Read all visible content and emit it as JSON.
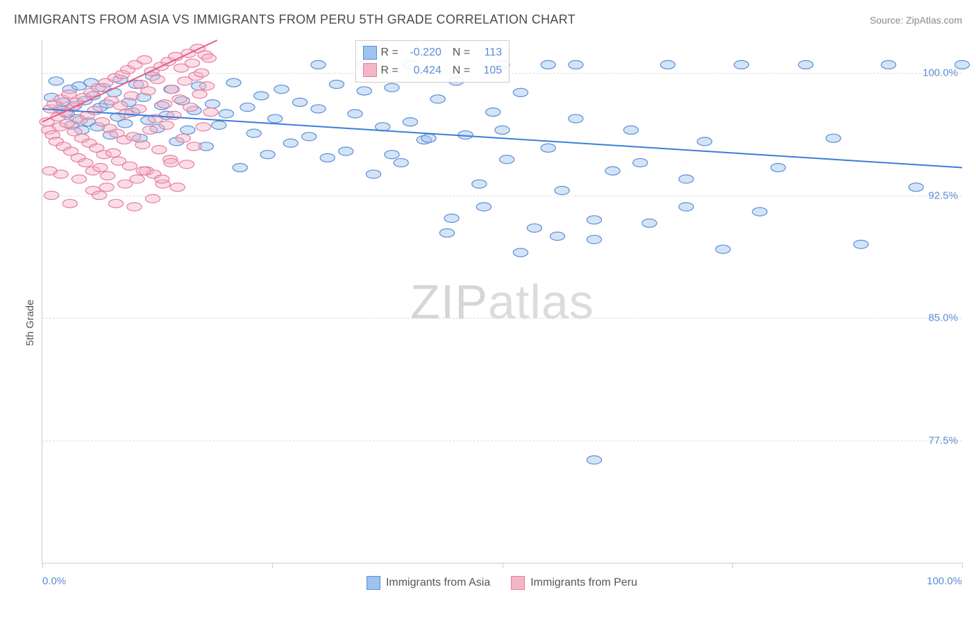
{
  "title": "IMMIGRANTS FROM ASIA VS IMMIGRANTS FROM PERU 5TH GRADE CORRELATION CHART",
  "source_label": "Source: ZipAtlas.com",
  "ylabel": "5th Grade",
  "watermark_a": "ZIP",
  "watermark_b": "atlas",
  "chart": {
    "type": "scatter",
    "xlim": [
      0,
      100
    ],
    "ylim": [
      70,
      102
    ],
    "xtick_positions": [
      0,
      25,
      50,
      75,
      100
    ],
    "xtick_labels_shown": {
      "0": "0.0%",
      "100": "100.0%"
    },
    "ytick_positions": [
      77.5,
      85.0,
      92.5,
      100.0
    ],
    "ytick_labels": [
      "77.5%",
      "85.0%",
      "92.5%",
      "100.0%"
    ],
    "grid_color": "#dddddd",
    "axis_color": "#cccccc",
    "background_color": "#ffffff",
    "tick_label_color": "#5b8dd6",
    "marker_radius": 8,
    "marker_opacity": 0.45,
    "line_width": 2,
    "series": [
      {
        "name": "Immigrants from Asia",
        "color_fill": "#9ec3ee",
        "color_stroke": "#5b8dd6",
        "line_color": "#3b7dd8",
        "R": "-0.220",
        "N": "113",
        "trend": {
          "x1": 0,
          "y1": 97.8,
          "x2": 100,
          "y2": 94.2
        },
        "points": [
          [
            1,
            98.5
          ],
          [
            1.5,
            99.5
          ],
          [
            2,
            97.8
          ],
          [
            2.3,
            98.2
          ],
          [
            2.7,
            97.5
          ],
          [
            3,
            99.0
          ],
          [
            3.2,
            96.8
          ],
          [
            3.5,
            98.0
          ],
          [
            3.8,
            97.2
          ],
          [
            4,
            99.2
          ],
          [
            4.3,
            96.5
          ],
          [
            4.6,
            98.3
          ],
          [
            5,
            97.0
          ],
          [
            5.3,
            99.4
          ],
          [
            5.5,
            98.6
          ],
          [
            6,
            96.7
          ],
          [
            6.3,
            97.9
          ],
          [
            6.6,
            99.1
          ],
          [
            7,
            98.1
          ],
          [
            7.4,
            96.2
          ],
          [
            7.8,
            98.8
          ],
          [
            8.2,
            97.3
          ],
          [
            8.5,
            99.6
          ],
          [
            9,
            96.9
          ],
          [
            9.4,
            98.2
          ],
          [
            9.8,
            97.6
          ],
          [
            10.2,
            99.3
          ],
          [
            10.6,
            96.0
          ],
          [
            11,
            98.5
          ],
          [
            11.5,
            97.1
          ],
          [
            12,
            99.8
          ],
          [
            12.5,
            96.6
          ],
          [
            13,
            98.0
          ],
          [
            13.5,
            97.4
          ],
          [
            14,
            99.0
          ],
          [
            14.6,
            95.8
          ],
          [
            15.2,
            98.3
          ],
          [
            15.8,
            96.5
          ],
          [
            16.5,
            97.7
          ],
          [
            17,
            99.2
          ],
          [
            17.8,
            95.5
          ],
          [
            18.5,
            98.1
          ],
          [
            19.2,
            96.8
          ],
          [
            20,
            97.5
          ],
          [
            20.8,
            99.4
          ],
          [
            21.5,
            94.2
          ],
          [
            22.3,
            97.9
          ],
          [
            23,
            96.3
          ],
          [
            23.8,
            98.6
          ],
          [
            24.5,
            95.0
          ],
          [
            25.3,
            97.2
          ],
          [
            26,
            99.0
          ],
          [
            27,
            95.7
          ],
          [
            28,
            98.2
          ],
          [
            29,
            96.1
          ],
          [
            30,
            97.8
          ],
          [
            31,
            94.8
          ],
          [
            32,
            99.3
          ],
          [
            33,
            95.2
          ],
          [
            34,
            97.5
          ],
          [
            35,
            98.9
          ],
          [
            36,
            93.8
          ],
          [
            37,
            96.7
          ],
          [
            38,
            99.1
          ],
          [
            39,
            94.5
          ],
          [
            40,
            97.0
          ],
          [
            41.5,
            95.9
          ],
          [
            43,
            98.4
          ],
          [
            44.5,
            91.1
          ],
          [
            46,
            96.2
          ],
          [
            47.5,
            93.2
          ],
          [
            49,
            97.6
          ],
          [
            50.5,
            94.7
          ],
          [
            52,
            98.8
          ],
          [
            53.5,
            90.5
          ],
          [
            55,
            95.4
          ],
          [
            56.5,
            92.8
          ],
          [
            58,
            97.2
          ],
          [
            60,
            89.8
          ],
          [
            62,
            94.0
          ],
          [
            64,
            96.5
          ],
          [
            66,
            90.8
          ],
          [
            68,
            100.5
          ],
          [
            70,
            93.5
          ],
          [
            72,
            95.8
          ],
          [
            74,
            89.2
          ],
          [
            76,
            100.5
          ],
          [
            78,
            91.5
          ],
          [
            80,
            94.2
          ],
          [
            83,
            100.5
          ],
          [
            86,
            96.0
          ],
          [
            89,
            89.5
          ],
          [
            92,
            100.5
          ],
          [
            95,
            93.0
          ],
          [
            100,
            100.5
          ],
          [
            44,
            90.2
          ],
          [
            48,
            91.8
          ],
          [
            52,
            89.0
          ],
          [
            56,
            90.0
          ],
          [
            60,
            76.3
          ],
          [
            35,
            100.5
          ],
          [
            40,
            100.5
          ],
          [
            45,
            99.5
          ],
          [
            50,
            96.5
          ],
          [
            55,
            100.5
          ],
          [
            60,
            91.0
          ],
          [
            65,
            94.5
          ],
          [
            70,
            91.8
          ],
          [
            50,
            100.5
          ],
          [
            58,
            100.5
          ],
          [
            42,
            96.0
          ],
          [
            38,
            95.0
          ],
          [
            30,
            100.5
          ]
        ]
      },
      {
        "name": "Immigrants from Peru",
        "color_fill": "#f4b6c6",
        "color_stroke": "#e87ba0",
        "line_color": "#e85a88",
        "R": "0.424",
        "N": "105",
        "trend": {
          "x1": 0,
          "y1": 97.0,
          "x2": 19,
          "y2": 102.0
        },
        "points": [
          [
            0.5,
            97.0
          ],
          [
            0.7,
            96.5
          ],
          [
            0.9,
            97.8
          ],
          [
            1.1,
            96.2
          ],
          [
            1.3,
            98.1
          ],
          [
            1.5,
            95.8
          ],
          [
            1.7,
            97.3
          ],
          [
            1.9,
            96.7
          ],
          [
            2.1,
            98.4
          ],
          [
            2.3,
            95.5
          ],
          [
            2.5,
            97.6
          ],
          [
            2.7,
            96.9
          ],
          [
            2.9,
            98.7
          ],
          [
            3.1,
            95.2
          ],
          [
            3.3,
            97.9
          ],
          [
            3.5,
            96.4
          ],
          [
            3.7,
            98.2
          ],
          [
            3.9,
            94.8
          ],
          [
            4.1,
            97.1
          ],
          [
            4.3,
            96.0
          ],
          [
            4.5,
            98.5
          ],
          [
            4.7,
            94.5
          ],
          [
            4.9,
            97.4
          ],
          [
            5.1,
            95.7
          ],
          [
            5.3,
            98.8
          ],
          [
            5.5,
            94.0
          ],
          [
            5.7,
            97.7
          ],
          [
            5.9,
            95.4
          ],
          [
            6.1,
            99.1
          ],
          [
            6.3,
            94.2
          ],
          [
            6.5,
            97.0
          ],
          [
            6.7,
            95.0
          ],
          [
            6.9,
            99.4
          ],
          [
            7.1,
            93.7
          ],
          [
            7.3,
            96.6
          ],
          [
            7.5,
            98.3
          ],
          [
            7.7,
            95.1
          ],
          [
            7.9,
            99.7
          ],
          [
            8.1,
            96.3
          ],
          [
            8.3,
            94.6
          ],
          [
            8.5,
            98.0
          ],
          [
            8.7,
            99.9
          ],
          [
            8.9,
            95.9
          ],
          [
            9.1,
            97.5
          ],
          [
            9.3,
            100.2
          ],
          [
            9.5,
            94.3
          ],
          [
            9.7,
            98.6
          ],
          [
            9.9,
            96.1
          ],
          [
            10.1,
            100.5
          ],
          [
            10.3,
            93.5
          ],
          [
            10.5,
            97.8
          ],
          [
            10.7,
            99.3
          ],
          [
            10.9,
            95.6
          ],
          [
            11.1,
            100.8
          ],
          [
            11.3,
            94.0
          ],
          [
            11.5,
            98.9
          ],
          [
            11.7,
            96.5
          ],
          [
            11.9,
            100.1
          ],
          [
            12.1,
            93.8
          ],
          [
            12.3,
            97.2
          ],
          [
            12.5,
            99.6
          ],
          [
            12.7,
            95.3
          ],
          [
            12.9,
            100.4
          ],
          [
            13.1,
            93.2
          ],
          [
            13.3,
            98.1
          ],
          [
            13.5,
            96.8
          ],
          [
            13.7,
            100.7
          ],
          [
            13.9,
            94.7
          ],
          [
            14.1,
            99.0
          ],
          [
            14.3,
            97.4
          ],
          [
            14.5,
            101.0
          ],
          [
            14.7,
            93.0
          ],
          [
            14.9,
            98.4
          ],
          [
            15.1,
            100.3
          ],
          [
            15.3,
            96.0
          ],
          [
            15.5,
            99.5
          ],
          [
            15.7,
            94.4
          ],
          [
            15.9,
            101.2
          ],
          [
            16.1,
            97.9
          ],
          [
            16.3,
            100.6
          ],
          [
            16.5,
            95.5
          ],
          [
            16.7,
            99.8
          ],
          [
            16.9,
            101.5
          ],
          [
            17.1,
            98.7
          ],
          [
            17.3,
            100.0
          ],
          [
            17.5,
            96.7
          ],
          [
            17.7,
            101.1
          ],
          [
            17.9,
            99.2
          ],
          [
            18.1,
            100.9
          ],
          [
            18.3,
            97.6
          ],
          [
            5.5,
            92.8
          ],
          [
            6.2,
            92.5
          ],
          [
            7.0,
            93.0
          ],
          [
            8.0,
            92.0
          ],
          [
            9.0,
            93.2
          ],
          [
            10.0,
            91.8
          ],
          [
            11.0,
            94.0
          ],
          [
            12.0,
            92.3
          ],
          [
            13.0,
            93.5
          ],
          [
            14.0,
            94.5
          ],
          [
            4.0,
            93.5
          ],
          [
            3.0,
            92.0
          ],
          [
            2.0,
            93.8
          ],
          [
            1.0,
            92.5
          ],
          [
            0.8,
            94.0
          ]
        ]
      }
    ]
  },
  "bottom_legend": [
    {
      "label": "Immigrants from Asia",
      "fill": "#9ec3ee",
      "stroke": "#5b8dd6"
    },
    {
      "label": "Immigrants from Peru",
      "fill": "#f4b6c6",
      "stroke": "#e87ba0"
    }
  ],
  "stats_box": {
    "left_pct": 34,
    "rows": [
      {
        "fill": "#9ec3ee",
        "stroke": "#5b8dd6",
        "R_label": "R =",
        "R": "-0.220",
        "N_label": "N =",
        "N": "113"
      },
      {
        "fill": "#f4b6c6",
        "stroke": "#e87ba0",
        "R_label": "R =",
        "R": "0.424",
        "N_label": "N =",
        "N": "105"
      }
    ]
  }
}
